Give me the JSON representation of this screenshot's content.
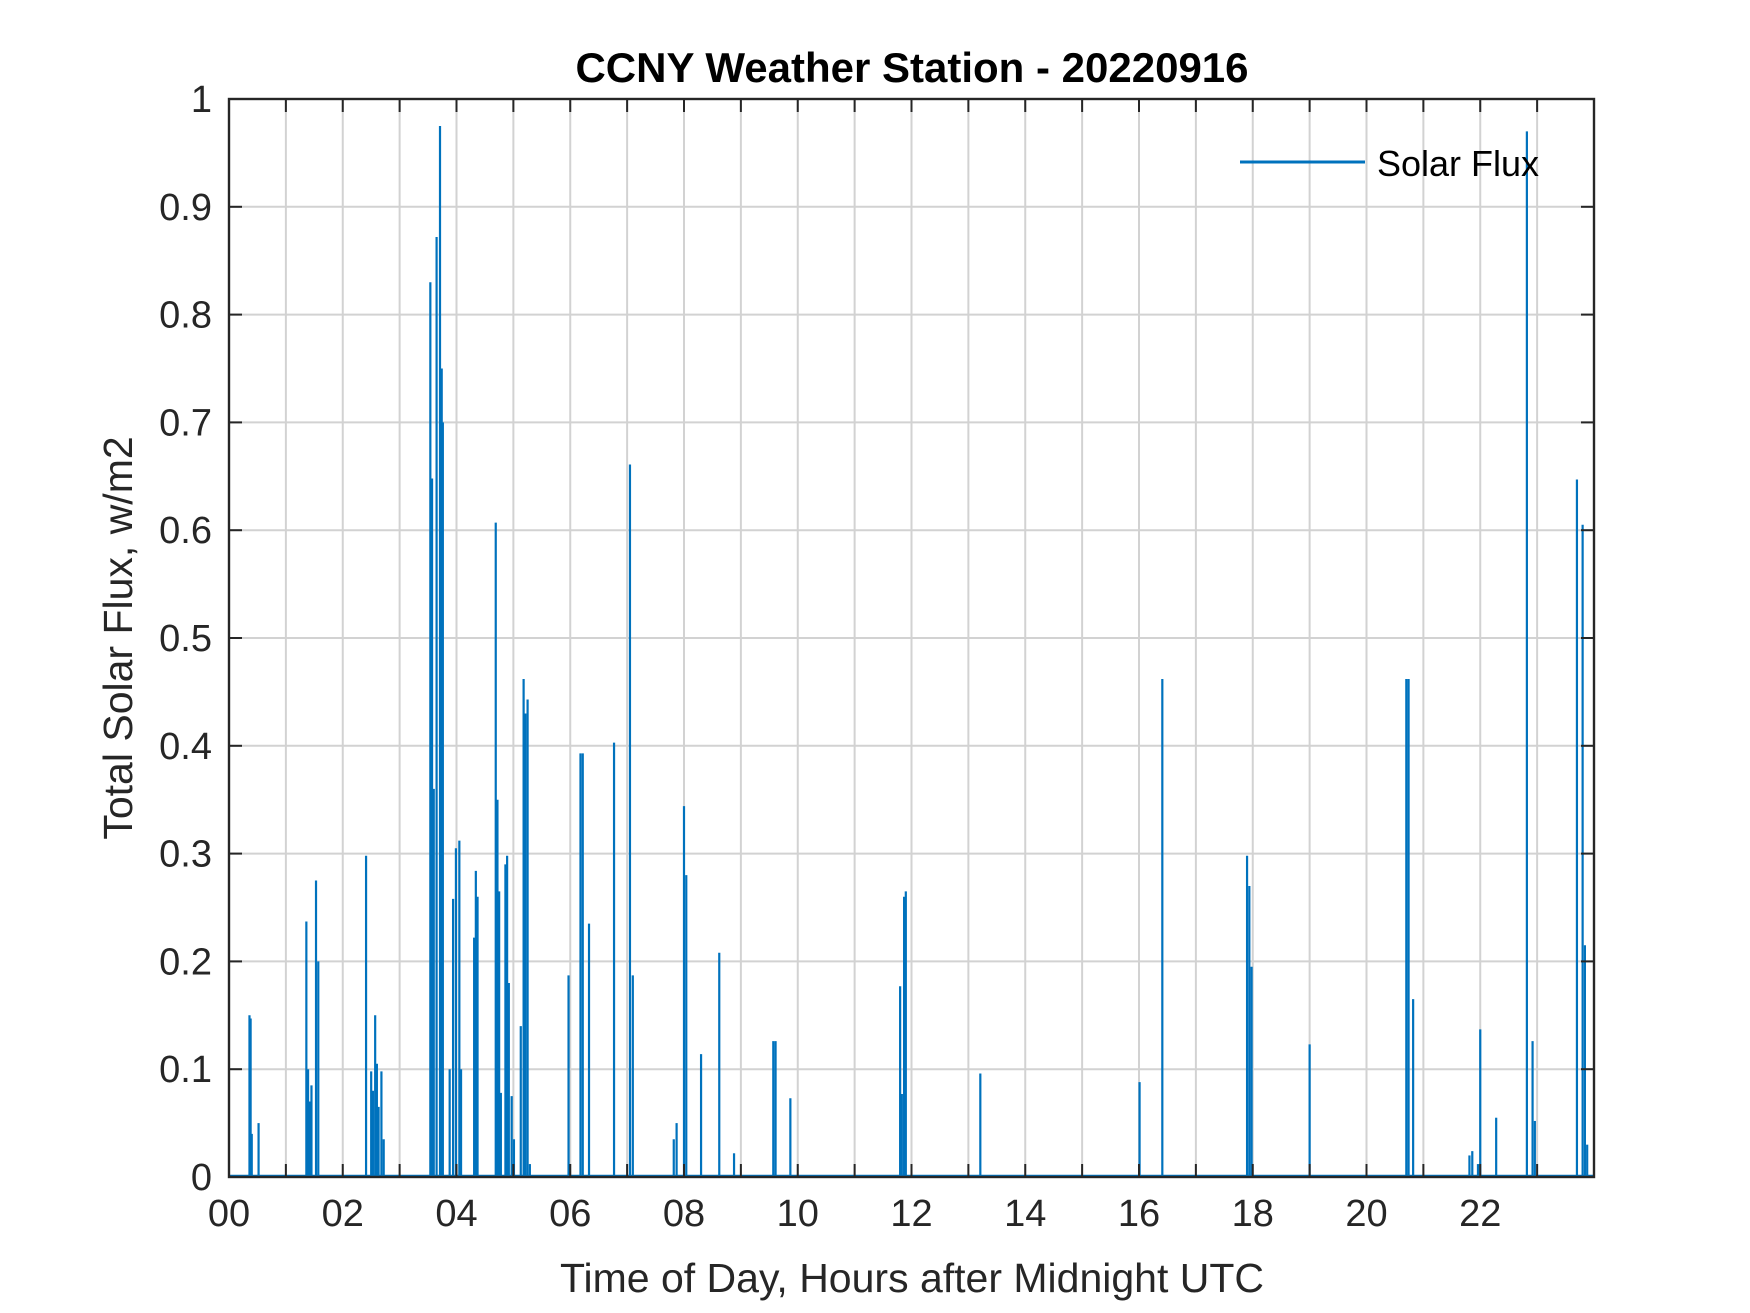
{
  "chart_data": {
    "type": "line",
    "title": "CCNY Weather Station - 20220916",
    "xlabel": "Time of Day, Hours after Midnight UTC",
    "ylabel": "Total Solar Flux, w/m2",
    "xlim": [
      0,
      24
    ],
    "ylim": [
      0,
      1
    ],
    "xticks": [
      0,
      2,
      4,
      6,
      8,
      10,
      12,
      14,
      16,
      18,
      20,
      22
    ],
    "xtick_labels": [
      "00",
      "02",
      "04",
      "06",
      "08",
      "10",
      "12",
      "14",
      "16",
      "18",
      "20",
      "22"
    ],
    "yticks": [
      0,
      0.1,
      0.2,
      0.3,
      0.4,
      0.5,
      0.6,
      0.7,
      0.8,
      0.9,
      1
    ],
    "ytick_labels": [
      "0",
      "0.1",
      "0.2",
      "0.3",
      "0.4",
      "0.5",
      "0.6",
      "0.7",
      "0.8",
      "0.9",
      "1"
    ],
    "grid": true,
    "legend_position": "top-right",
    "series": [
      {
        "name": "Solar Flux",
        "color": "#0072BD",
        "spikes": [
          [
            0.36,
            0.15
          ],
          [
            0.38,
            0.147
          ],
          [
            0.4,
            0.04
          ],
          [
            0.52,
            0.05
          ],
          [
            1.36,
            0.237
          ],
          [
            1.39,
            0.1
          ],
          [
            1.42,
            0.07
          ],
          [
            1.45,
            0.085
          ],
          [
            1.53,
            0.275
          ],
          [
            1.57,
            0.2
          ],
          [
            2.41,
            0.298
          ],
          [
            2.5,
            0.098
          ],
          [
            2.53,
            0.08
          ],
          [
            2.57,
            0.15
          ],
          [
            2.6,
            0.105
          ],
          [
            2.63,
            0.065
          ],
          [
            2.68,
            0.098
          ],
          [
            2.72,
            0.035
          ],
          [
            3.54,
            0.83
          ],
          [
            3.57,
            0.648
          ],
          [
            3.6,
            0.36
          ],
          [
            3.65,
            0.872
          ],
          [
            3.71,
            0.975
          ],
          [
            3.74,
            0.75
          ],
          [
            3.76,
            0.7
          ],
          [
            3.88,
            0.1
          ],
          [
            3.94,
            0.258
          ],
          [
            3.99,
            0.305
          ],
          [
            4.05,
            0.312
          ],
          [
            4.08,
            0.1
          ],
          [
            4.31,
            0.222
          ],
          [
            4.34,
            0.284
          ],
          [
            4.37,
            0.26
          ],
          [
            4.69,
            0.607
          ],
          [
            4.72,
            0.35
          ],
          [
            4.75,
            0.265
          ],
          [
            4.78,
            0.078
          ],
          [
            4.86,
            0.29
          ],
          [
            4.89,
            0.298
          ],
          [
            4.92,
            0.18
          ],
          [
            4.97,
            0.075
          ],
          [
            5.01,
            0.035
          ],
          [
            5.13,
            0.14
          ],
          [
            5.18,
            0.462
          ],
          [
            5.21,
            0.43
          ],
          [
            5.25,
            0.443
          ],
          [
            5.29,
            0.012
          ],
          [
            5.97,
            0.187
          ],
          [
            6.18,
            0.393
          ],
          [
            6.22,
            0.393
          ],
          [
            6.33,
            0.235
          ],
          [
            6.77,
            0.403
          ],
          [
            7.05,
            0.661
          ],
          [
            7.1,
            0.187
          ],
          [
            7.82,
            0.035
          ],
          [
            7.87,
            0.05
          ],
          [
            8.0,
            0.344
          ],
          [
            8.04,
            0.28
          ],
          [
            8.3,
            0.114
          ],
          [
            8.62,
            0.208
          ],
          [
            8.88,
            0.022
          ],
          [
            9.57,
            0.126
          ],
          [
            9.61,
            0.126
          ],
          [
            9.87,
            0.073
          ],
          [
            11.8,
            0.177
          ],
          [
            11.83,
            0.077
          ],
          [
            11.87,
            0.26
          ],
          [
            11.9,
            0.265
          ],
          [
            13.21,
            0.096
          ],
          [
            16.01,
            0.088
          ],
          [
            16.41,
            0.462
          ],
          [
            17.9,
            0.298
          ],
          [
            17.94,
            0.27
          ],
          [
            17.98,
            0.195
          ],
          [
            19.0,
            0.123
          ],
          [
            20.7,
            0.462
          ],
          [
            20.74,
            0.462
          ],
          [
            20.82,
            0.165
          ],
          [
            21.81,
            0.02
          ],
          [
            21.86,
            0.024
          ],
          [
            21.96,
            0.012
          ],
          [
            22.0,
            0.137
          ],
          [
            22.28,
            0.055
          ],
          [
            22.82,
            0.97
          ],
          [
            22.92,
            0.126
          ],
          [
            22.96,
            0.052
          ],
          [
            23.7,
            0.647
          ],
          [
            23.8,
            0.605
          ],
          [
            23.84,
            0.215
          ],
          [
            23.88,
            0.03
          ]
        ]
      }
    ]
  }
}
